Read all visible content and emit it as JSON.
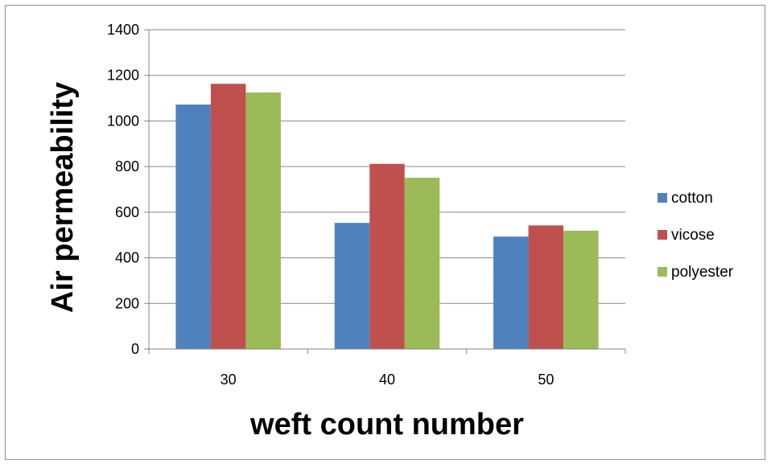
{
  "chart_data": {
    "type": "bar",
    "title": "",
    "xlabel": "weft count number",
    "ylabel": "Air permeability",
    "categories": [
      "30",
      "40",
      "50"
    ],
    "series": [
      {
        "name": "cotton",
        "color": "#4f81bd",
        "values": [
          1072,
          553,
          493
        ]
      },
      {
        "name": "vicose",
        "color": "#c0504d",
        "values": [
          1163,
          812,
          542
        ]
      },
      {
        "name": "polyester",
        "color": "#9bbb59",
        "values": [
          1125,
          751,
          519
        ]
      }
    ],
    "ylim": [
      0,
      1400
    ],
    "yticks": [
      0,
      200,
      400,
      600,
      800,
      1000,
      1200,
      1400
    ],
    "grid": true,
    "legend_position": "right"
  }
}
